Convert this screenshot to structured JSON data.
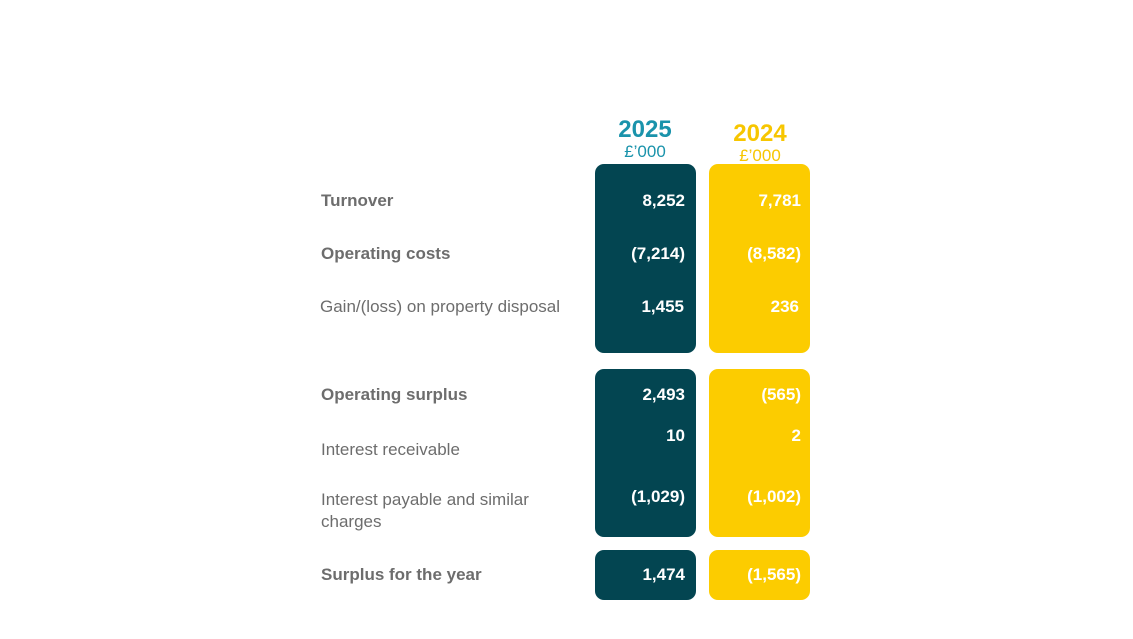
{
  "columns": [
    {
      "year": "2025",
      "unit": "£’000",
      "color": "#1a93ab",
      "block_color": "#034551"
    },
    {
      "year": "2024",
      "unit": "£’000",
      "color": "#f7c600",
      "block_color": "#fccc00"
    }
  ],
  "rows": {
    "turnover": {
      "label": "Turnover",
      "v2025": "8,252",
      "v2024": "7,781"
    },
    "operating_costs": {
      "label": "Operating costs",
      "v2025": "(7,214)",
      "v2024": "(8,582)"
    },
    "gain_loss_disposal": {
      "label": "Gain/(loss) on property disposal",
      "v2025": "1,455",
      "v2024": "236"
    },
    "operating_surplus": {
      "label": "Operating surplus",
      "v2025": "2,493",
      "v2024": "(565)"
    },
    "interest_receivable": {
      "label": "Interest receivable",
      "v2025": "10",
      "v2024": "2"
    },
    "interest_payable": {
      "label": "Interest payable and similar charges",
      "v2025": "(1,029)",
      "v2024": "(1,002)"
    },
    "surplus_year": {
      "label": "Surplus for the year",
      "v2025": "1,474",
      "v2024": "(1,565)"
    }
  }
}
